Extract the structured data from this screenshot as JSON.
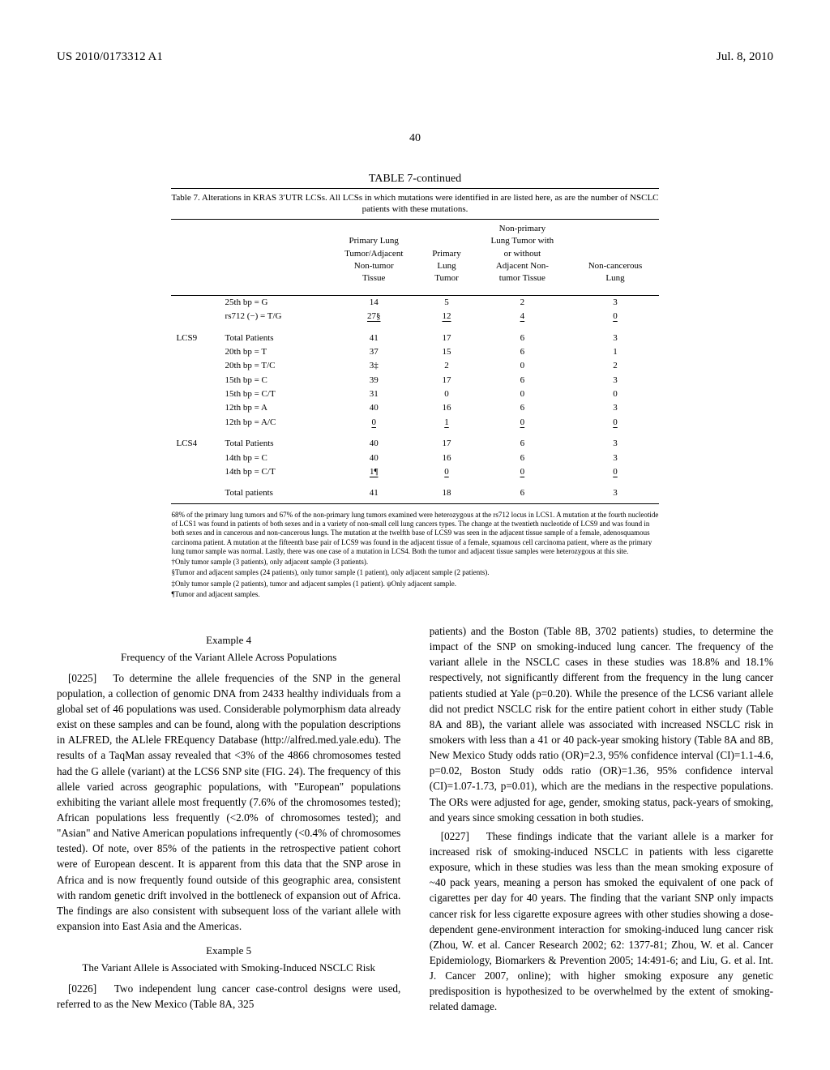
{
  "header": {
    "left": "US 2010/0173312 A1",
    "right": "Jul. 8, 2010"
  },
  "page_number": "40",
  "table": {
    "title": "TABLE 7-continued",
    "caption": "Table 7. Alterations in KRAS 3′UTR LCSs. All LCSs in which mutations were identified in are listed here, as are the number of NSCLC patients with these mutations.",
    "headers": [
      "",
      "",
      "Primary Lung Tumor/Adjacent Non-tumor Tissue",
      "Primary Lung Tumor",
      "Non-primary Lung Tumor with or without Adjacent Non-tumor Tissue",
      "Non-cancerous Lung"
    ],
    "sections": [
      {
        "rows": [
          [
            "",
            "25th bp = G",
            "14",
            "5",
            "2",
            "3"
          ],
          [
            "",
            "rs712 (−) = T/G",
            "27§",
            "12",
            "4",
            "0"
          ]
        ],
        "underline_last": true
      },
      {
        "rows": [
          [
            "LCS9",
            "Total Patients",
            "41",
            "17",
            "6",
            "3"
          ],
          [
            "",
            "20th bp = T",
            "37",
            "15",
            "6",
            "1"
          ],
          [
            "",
            "20th bp = T/C",
            "3‡",
            "2",
            "0",
            "2"
          ],
          [
            "",
            "15th bp = C",
            "39",
            "17",
            "6",
            "3"
          ],
          [
            "",
            "15th bp = C/T",
            "31",
            "0",
            "0",
            "0"
          ],
          [
            "",
            "12th bp = A",
            "40",
            "16",
            "6",
            "3"
          ],
          [
            "",
            "12th bp = A/C",
            "0",
            "1",
            "0",
            "0"
          ]
        ],
        "underline_last": true
      },
      {
        "rows": [
          [
            "LCS4",
            "Total Patients",
            "40",
            "17",
            "6",
            "3"
          ],
          [
            "",
            "14th bp = C",
            "40",
            "16",
            "6",
            "3"
          ],
          [
            "",
            "14th bp = C/T",
            "1¶",
            "0",
            "0",
            "0"
          ]
        ],
        "underline_last": true
      },
      {
        "rows": [
          [
            "",
            "Total patients",
            "41",
            "18",
            "6",
            "3"
          ]
        ],
        "underline_last": false,
        "bottom": true
      }
    ]
  },
  "footnotes": [
    "68% of the primary lung tumors and 67% of the non-primary lung tumors examined were heterozygous at the rs712 locus in LCS1. A mutation at the fourth nucleotide of LCS1 was found in patients of both sexes and in a variety of non-small cell lung cancers types. The change at the twentieth nucleotide of LCS9 and was found in both sexes and in cancerous and non-cancerous lungs. The mutation at the twelfth base of LCS9 was seen in the adjacent tissue sample of a female, adenosquamous carcinoma patient. A mutation at the fifteenth base pair of LCS9 was found in the adjacent tissue of a female, squamous cell carcinoma patient, where as the primary lung tumor sample was normal. Lastly, there was one case of a mutation in LCS4. Both the tumor and adjacent tissue samples were heterozygous at this site.",
    "†Only tumor sample (3 patients), only adjacent sample (3 patients).",
    "§Tumor and adjacent samples (24 patients), only tumor sample (1 patient), only adjacent sample (2 patients).",
    "‡Only tumor sample (2 patients), tumor and adjacent samples (1 patient). ψOnly adjacent sample.",
    "¶Tumor and adjacent samples."
  ],
  "example4": {
    "title": "Example 4",
    "subtitle": "Frequency of the Variant Allele Across Populations",
    "para_num": "[0225]",
    "text": "To determine the allele frequencies of the SNP in the general population, a collection of genomic DNA from 2433 healthy individuals from a global set of 46 populations was used. Considerable polymorphism data already exist on these samples and can be found, along with the population descriptions in ALFRED, the ALlele FREquency Database (http://alfred.med.yale.edu). The results of a TaqMan assay revealed that <3% of the 4866 chromosomes tested had the G allele (variant) at the LCS6 SNP site (FIG. 24). The frequency of this allele varied across geographic populations, with \"European\" populations exhibiting the variant allele most frequently (7.6% of the chromosomes tested); African populations less frequently (<2.0% of chromosomes tested); and \"Asian\" and Native American populations infrequently (<0.4% of chromosomes tested). Of note, over 85% of the patients in the retrospective patient cohort were of European descent. It is apparent from this data that the SNP arose in Africa and is now frequently found outside of this geographic area, consistent with random genetic drift involved in the bottleneck of expansion out of Africa. The findings are also consistent with subsequent loss of the variant allele with expansion into East Asia and the Americas."
  },
  "example5": {
    "title": "Example 5",
    "subtitle": "The Variant Allele is Associated with Smoking-Induced NSCLC Risk",
    "para_num": "[0226]",
    "text": "Two independent lung cancer case-control designs were used, referred to as the New Mexico (Table 8A, 325"
  },
  "right_col": {
    "cont_text": "patients) and the Boston (Table 8B, 3702 patients) studies, to determine the impact of the SNP on smoking-induced lung cancer. The frequency of the variant allele in the NSCLC cases in these studies was 18.8% and 18.1% respectively, not significantly different from the frequency in the lung cancer patients studied at Yale (p=0.20). While the presence of the LCS6 variant allele did not predict NSCLC risk for the entire patient cohort in either study (Table 8A and 8B), the variant allele was associated with increased NSCLC risk in smokers with less than a 41 or 40 pack-year smoking history (Table 8A and 8B, New Mexico Study odds ratio (OR)=2.3, 95% confidence interval (CI)=1.1-4.6, p=0.02, Boston Study odds ratio (OR)=1.36, 95% confidence interval (CI)=1.07-1.73, p=0.01), which are the medians in the respective populations. The ORs were adjusted for age, gender, smoking status, pack-years of smoking, and years since smoking cessation in both studies.",
    "para227_num": "[0227]",
    "para227_text": "These findings indicate that the variant allele is a marker for increased risk of smoking-induced NSCLC in patients with less cigarette exposure, which in these studies was less than the mean smoking exposure of ~40 pack years, meaning a person has smoked the equivalent of one pack of cigarettes per day for 40 years. The finding that the variant SNP only impacts cancer risk for less cigarette exposure agrees with other studies showing a dose-dependent gene-environment interaction for smoking-induced lung cancer risk (Zhou, W. et al. Cancer Research 2002; 62: 1377-81; Zhou, W. et al. Cancer Epidemiology, Biomarkers & Prevention 2005; 14:491-6; and Liu, G. et al. Int. J. Cancer 2007, online); with higher smoking exposure any genetic predisposition is hypothesized to be overwhelmed by the extent of smoking-related damage."
  }
}
